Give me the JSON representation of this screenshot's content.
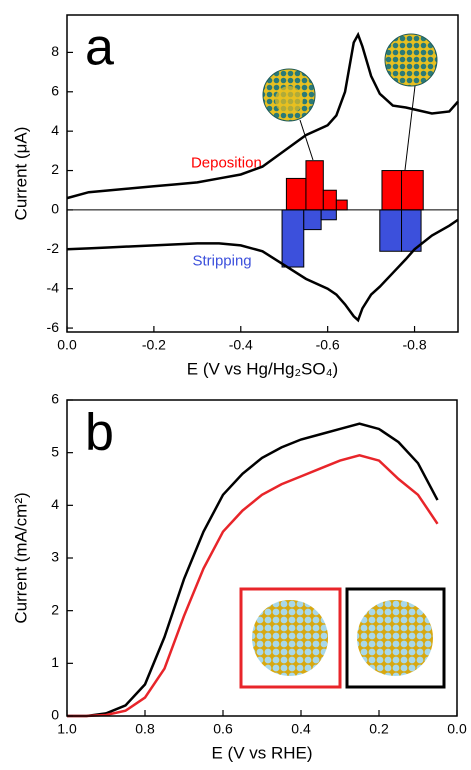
{
  "chart_data": [
    {
      "type": "line",
      "panel_label": "a",
      "xlabel": "E (V vs Hg/Hg₂SO₄)",
      "ylabel": "Current (μA)",
      "xlim": [
        0,
        -0.9
      ],
      "ylim": [
        -6.2,
        9.9
      ],
      "xticks": [
        {
          "value": 0,
          "label": "0.0"
        },
        -0.2,
        -0.4,
        -0.6,
        -0.8
      ],
      "yticks": [
        -6,
        -4,
        -2,
        0,
        2,
        4,
        6,
        8
      ],
      "x": [
        0,
        -0.05,
        -0.1,
        -0.15,
        -0.2,
        -0.25,
        -0.3,
        -0.35,
        -0.4,
        -0.45,
        -0.5,
        -0.55,
        -0.6,
        -0.62,
        -0.64,
        -0.66,
        -0.67,
        -0.68,
        -0.7,
        -0.72,
        -0.75,
        -0.78,
        -0.8,
        -0.84,
        -0.88,
        -0.9
      ],
      "series": [
        {
          "color": "#000000",
          "values": [
            0.6,
            0.9,
            1.0,
            1.1,
            1.2,
            1.3,
            1.4,
            1.6,
            1.8,
            2.2,
            3.0,
            3.8,
            4.3,
            4.8,
            6.0,
            8.5,
            8.9,
            8.3,
            6.8,
            5.9,
            5.3,
            5.2,
            5.1,
            4.9,
            5.0,
            5.5
          ]
        },
        {
          "color": "#000000",
          "values": [
            -2.0,
            -1.95,
            -1.9,
            -1.85,
            -1.8,
            -1.75,
            -1.7,
            -1.7,
            -1.8,
            -2.1,
            -2.8,
            -3.5,
            -4.0,
            -4.3,
            -4.8,
            -5.4,
            -5.6,
            -5.0,
            -4.3,
            -3.9,
            -3.2,
            -2.5,
            -2.0,
            -1.3,
            -0.8,
            -0.5
          ]
        }
      ],
      "bar_series": [
        {
          "name": "Deposition",
          "color": "#ff0000",
          "groups": [
            {
              "bins": [
                -0.505,
                -0.55,
                -0.59,
                -0.62,
                -0.645
              ],
              "values": [
                1.6,
                2.5,
                1.0,
                0.5
              ]
            },
            {
              "bins": [
                -0.725,
                -0.77,
                -0.82
              ],
              "values": [
                2.0,
                2.0
              ]
            }
          ]
        },
        {
          "name": "Stripping",
          "color": "#3c50dc",
          "groups": [
            {
              "bins": [
                -0.495,
                -0.545,
                -0.585,
                -0.62
              ],
              "values": [
                -2.9,
                -1.0,
                -0.5
              ]
            },
            {
              "bins": [
                -0.72,
                -0.77,
                -0.815
              ],
              "values": [
                -2.1,
                -2.1
              ]
            }
          ]
        }
      ]
    },
    {
      "type": "line",
      "panel_label": "b",
      "xlabel": "E (V vs RHE)",
      "ylabel": "Current (mA/cm²)",
      "xlim": [
        1.0,
        0.0
      ],
      "ylim": [
        0,
        6
      ],
      "xticks": [
        {
          "value": 1.0,
          "label": "1.0"
        },
        0.8,
        0.6,
        0.4,
        0.2,
        {
          "value": 0,
          "label": "0.0"
        }
      ],
      "yticks": [
        0,
        1,
        2,
        3,
        4,
        5,
        6
      ],
      "x": [
        1.0,
        0.95,
        0.9,
        0.85,
        0.8,
        0.75,
        0.7,
        0.65,
        0.6,
        0.55,
        0.5,
        0.45,
        0.4,
        0.35,
        0.3,
        0.25,
        0.2,
        0.15,
        0.1,
        0.05
      ],
      "series": [
        {
          "color": "#000000",
          "values": [
            0,
            0.0,
            0.05,
            0.2,
            0.6,
            1.5,
            2.6,
            3.5,
            4.2,
            4.6,
            4.9,
            5.1,
            5.25,
            5.35,
            5.45,
            5.55,
            5.45,
            5.2,
            4.8,
            4.1
          ]
        },
        {
          "color": "#e8252a",
          "values": [
            0,
            0.0,
            0.02,
            0.1,
            0.35,
            0.9,
            1.9,
            2.8,
            3.5,
            3.9,
            4.2,
            4.4,
            4.55,
            4.7,
            4.85,
            4.95,
            4.85,
            4.5,
            4.2,
            3.65
          ]
        }
      ]
    }
  ]
}
